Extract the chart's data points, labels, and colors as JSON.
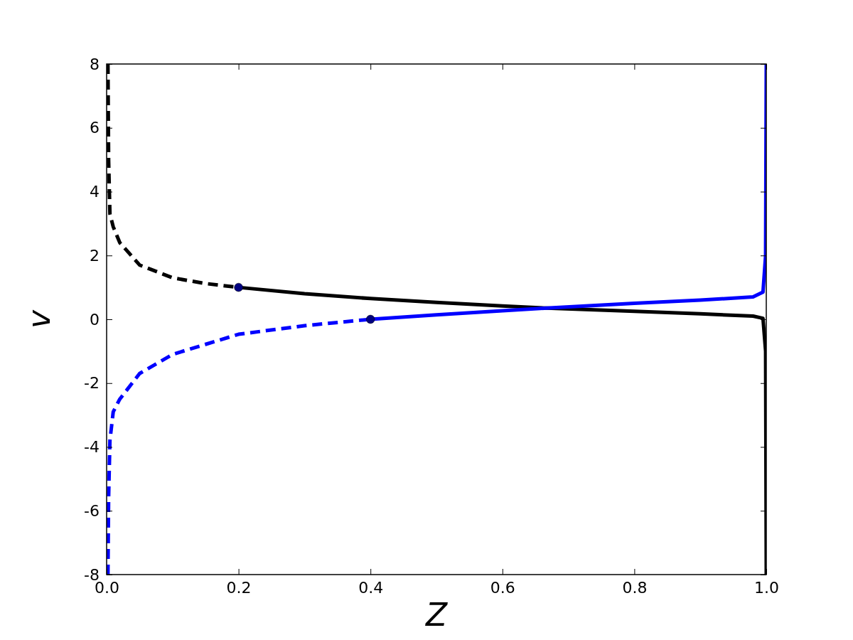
{
  "chart_data": {
    "type": "line",
    "xlabel": "Z",
    "ylabel": "v",
    "xlim": [
      0,
      1
    ],
    "ylim": [
      -8,
      8
    ],
    "xticks": [
      {
        "value": 0,
        "label": "0.0"
      },
      {
        "value": 0.2,
        "label": "0.2"
      },
      {
        "value": 0.4,
        "label": "0.4"
      },
      {
        "value": 0.6,
        "label": "0.6"
      },
      {
        "value": 0.8,
        "label": "0.8"
      },
      {
        "value": 1,
        "label": "1.0"
      }
    ],
    "yticks": [
      -8,
      -6,
      -4,
      -2,
      0,
      2,
      4,
      6,
      8
    ],
    "grid": false,
    "series": [
      {
        "type": "line",
        "color": "#000000",
        "line_style": "dashed",
        "marker": "none",
        "x": [
          0.002,
          0.003,
          0.005,
          0.01,
          0.02,
          0.05,
          0.1,
          0.15,
          0.2
        ],
        "values": [
          8,
          5,
          3.3,
          2.9,
          2.4,
          1.7,
          1.3,
          1.12,
          1
        ]
      },
      {
        "type": "line",
        "color": "#000000",
        "line_style": "solid",
        "marker": "none",
        "x": [
          0.2,
          0.3,
          0.4,
          0.5,
          0.6,
          0.667,
          0.8,
          0.9,
          0.98,
          0.995,
          0.999,
          1
        ],
        "values": [
          1,
          0.8,
          0.65,
          0.53,
          0.42,
          0.35,
          0.25,
          0.17,
          0.1,
          0.03,
          -1,
          -8
        ]
      },
      {
        "type": "line",
        "color": "#0000ff",
        "line_style": "dashed",
        "marker": "none",
        "x": [
          0.002,
          0.003,
          0.005,
          0.01,
          0.02,
          0.05,
          0.1,
          0.2,
          0.3,
          0.4
        ],
        "values": [
          -8,
          -5.6,
          -3.8,
          -2.9,
          -2.5,
          -1.7,
          -1.1,
          -0.47,
          -0.2,
          0
        ]
      },
      {
        "type": "line",
        "color": "#0000ff",
        "line_style": "solid",
        "marker": "none",
        "x": [
          0.4,
          0.5,
          0.6,
          0.667,
          0.8,
          0.9,
          0.98,
          0.995,
          0.999,
          1
        ],
        "values": [
          0,
          0.14,
          0.27,
          0.35,
          0.5,
          0.6,
          0.7,
          0.85,
          2,
          8
        ]
      },
      {
        "type": "scatter",
        "color": "#000080",
        "marker": "circle",
        "x": [
          0.2,
          0.4
        ],
        "values": [
          1,
          0
        ]
      }
    ]
  }
}
